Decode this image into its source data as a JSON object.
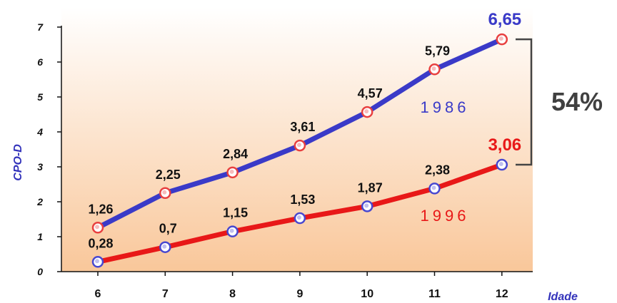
{
  "chart_data": {
    "type": "line",
    "ylabel": "CPO-D",
    "xlabel": "Idade",
    "categories": [
      "6",
      "7",
      "8",
      "9",
      "10",
      "11",
      "12"
    ],
    "ylim": [
      0,
      7
    ],
    "yticks": [
      "0",
      "1",
      "2",
      "3",
      "4",
      "5",
      "6",
      "7"
    ],
    "grid": false,
    "series": [
      {
        "name": "1986",
        "color": "#3a3ac8",
        "marker_color": "#e84040",
        "values": [
          1.26,
          2.25,
          2.84,
          3.61,
          4.57,
          5.79,
          6.65
        ],
        "labels": [
          "1,26",
          "2,25",
          "2,84",
          "3,61",
          "4,57",
          "5,79",
          "6,65"
        ]
      },
      {
        "name": "1996",
        "color": "#e81818",
        "marker_color": "#4848d0",
        "values": [
          0.28,
          0.7,
          1.15,
          1.53,
          1.87,
          2.38,
          3.06
        ],
        "labels": [
          "0,28",
          "0,7",
          "1,15",
          "1,53",
          "1,87",
          "2,38",
          "3,06"
        ]
      }
    ],
    "annotation": {
      "text": "54%",
      "type": "bracket",
      "from": 3.06,
      "to": 6.65
    },
    "background_gradient": [
      "#ffffff",
      "#f9c79a"
    ]
  }
}
